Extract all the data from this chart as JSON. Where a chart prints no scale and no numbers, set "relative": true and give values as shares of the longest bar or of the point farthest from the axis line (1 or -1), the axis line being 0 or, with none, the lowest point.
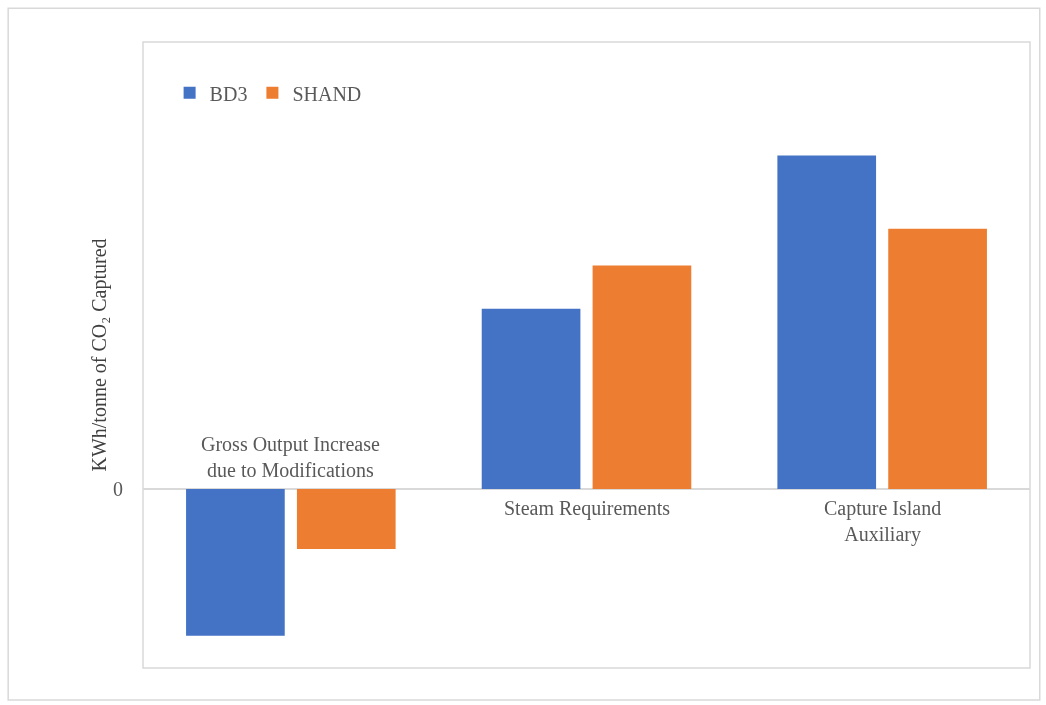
{
  "chart_data": {
    "type": "bar",
    "relative": true,
    "ylabel": "KWh/tonne of CO₂ Captured",
    "categories": [
      "Gross Output Increase due to Modifications",
      "Steam Requirements",
      "Capture Island Auxiliary"
    ],
    "series": [
      {
        "name": "BD3",
        "color": "#4472c4",
        "values": [
          -0.44,
          0.54,
          1.0
        ]
      },
      {
        "name": "SHAND",
        "color": "#ed7d31",
        "values": [
          -0.18,
          0.67,
          0.78
        ]
      }
    ],
    "annotations": [
      "0"
    ],
    "legend": "top left"
  }
}
